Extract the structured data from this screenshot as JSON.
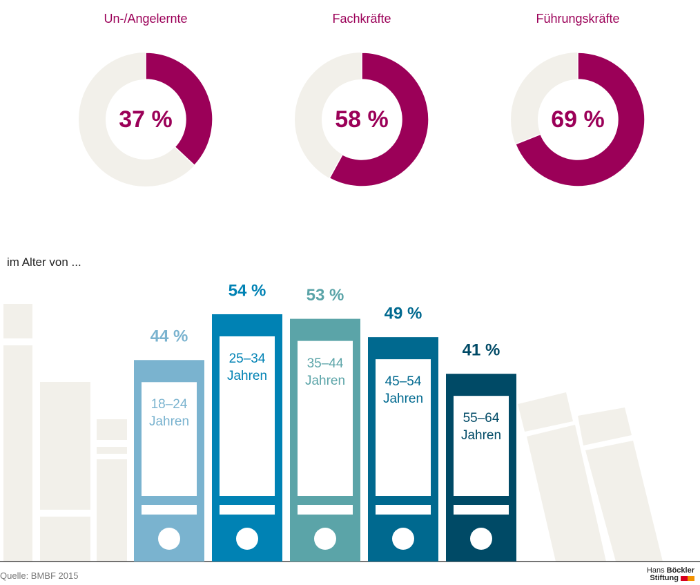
{
  "chart_data": [
    {
      "type": "donut",
      "categories": [
        "Un-/Angelernte",
        "Fachkräfte",
        "Führungskräfte"
      ],
      "values": [
        37,
        58,
        69
      ],
      "value_labels": [
        "37 %",
        "58 %",
        "69 %"
      ],
      "color": "#9b0058",
      "track_color": "#f2f0ea"
    },
    {
      "type": "bar",
      "subtitle": "im Alter von ...",
      "categories": [
        "18–24 Jahren",
        "25–34 Jahren",
        "35–44 Jahren",
        "45–54 Jahren",
        "55–64 Jahren"
      ],
      "values": [
        44,
        54,
        53,
        49,
        41
      ],
      "value_labels": [
        "44 %",
        "54 %",
        "53 %",
        "49 %",
        "41 %"
      ],
      "colors": [
        "#7ab3cf",
        "#0082b4",
        "#5ba4a8",
        "#00698f",
        "#004a66"
      ]
    }
  ],
  "source": "Quelle: BMBF 2015",
  "logo": {
    "line1": "Hans",
    "line1_bold": "Böckler",
    "line2": "Stiftung"
  }
}
